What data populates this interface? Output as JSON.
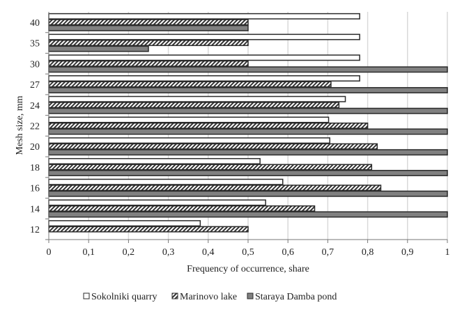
{
  "chart_data": {
    "type": "bar",
    "orientation": "horizontal",
    "title": "",
    "xlabel": "Frequency of occurrence, share",
    "ylabel": "Mesh size, mm",
    "xlim": [
      0,
      1
    ],
    "xticks": [
      "0",
      "0,1",
      "0,2",
      "0,3",
      "0,4",
      "0,5",
      "0,6",
      "0,7",
      "0,8",
      "0,9",
      "1"
    ],
    "grid": "vertical",
    "legend": "bottom",
    "categories": [
      "12",
      "14",
      "16",
      "18",
      "20",
      "22",
      "24",
      "27",
      "30",
      "35",
      "40"
    ],
    "series": [
      {
        "name": "Sokolniki quarry",
        "style": "white",
        "values": [
          0.38,
          0.544,
          0.587,
          0.53,
          0.705,
          0.702,
          0.744,
          0.78,
          0.78,
          0.78,
          0.78
        ]
      },
      {
        "name": "Marinovo lake",
        "style": "hatched",
        "values": [
          0.5,
          0.667,
          0.833,
          0.81,
          0.824,
          0.8,
          0.728,
          0.708,
          0.5,
          0.5,
          0.5
        ]
      },
      {
        "name": "Staraya Damba pond",
        "style": "gray",
        "values": [
          0,
          1,
          1,
          1,
          1,
          1,
          1,
          1,
          1,
          0.25,
          0.5
        ]
      }
    ],
    "colors": {
      "gray": "#808080",
      "border": "#2b2b2b",
      "grid": "#d9d9d9"
    }
  }
}
